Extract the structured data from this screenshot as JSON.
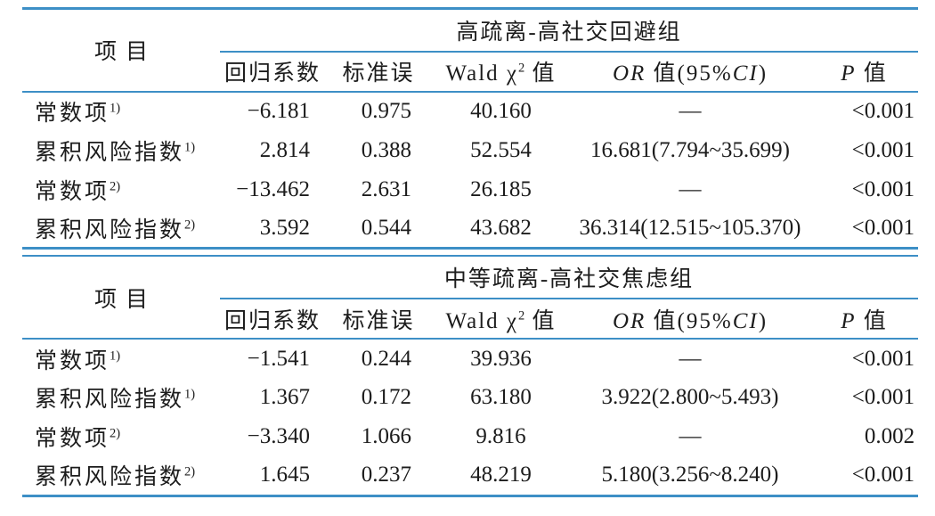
{
  "accent_color": "#3d8fc6",
  "headers": {
    "item": "项目",
    "coef": "回归系数",
    "se": "标准误",
    "wald_prefix": "Wald χ",
    "wald_sup": "2",
    "wald_suffix": " 值",
    "or_italic1": "OR",
    "or_mid": " 值(95%",
    "or_italic2": "CI",
    "or_close": ")",
    "p_italic": "P",
    "p_suffix": " 值"
  },
  "tables": [
    {
      "group_title": "高疏离-高社交回避组",
      "rows": [
        {
          "label": "常数项",
          "sup": "1)",
          "coef": "−6.181",
          "se": "0.975",
          "wald": "40.160",
          "or": "—",
          "p": "<0.001"
        },
        {
          "label": "累积风险指数",
          "sup": "1)",
          "coef": "2.814",
          "se": "0.388",
          "wald": "52.554",
          "or": "16.681(7.794~35.699)",
          "p": "<0.001"
        },
        {
          "label": "常数项",
          "sup": "2)",
          "coef": "−13.462",
          "se": "2.631",
          "wald": "26.185",
          "or": "—",
          "p": "<0.001"
        },
        {
          "label": "累积风险指数",
          "sup": "2)",
          "coef": "3.592",
          "se": "0.544",
          "wald": "43.682",
          "or": "36.314(12.515~105.370)",
          "p": "<0.001"
        }
      ]
    },
    {
      "group_title": "中等疏离-高社交焦虑组",
      "rows": [
        {
          "label": "常数项",
          "sup": "1)",
          "coef": "−1.541",
          "se": "0.244",
          "wald": "39.936",
          "or": "—",
          "p": "<0.001"
        },
        {
          "label": "累积风险指数",
          "sup": "1)",
          "coef": "1.367",
          "se": "0.172",
          "wald": "63.180",
          "or": "3.922(2.800~5.493)",
          "p": "<0.001"
        },
        {
          "label": "常数项",
          "sup": "2)",
          "coef": "−3.340",
          "se": "1.066",
          "wald": "9.816",
          "or": "—",
          "p": "0.002"
        },
        {
          "label": "累积风险指数",
          "sup": "2)",
          "coef": "1.645",
          "se": "0.237",
          "wald": "48.219",
          "or": "5.180(3.256~8.240)",
          "p": "<0.001"
        }
      ]
    }
  ],
  "chart_data": {
    "type": "table",
    "column_headers": [
      "项目",
      "回归系数",
      "标准误",
      "Wald χ2 值",
      "OR 值(95%CI)",
      "P 值"
    ],
    "groups": [
      {
        "title": "高疏离-高社交回避组",
        "rows": [
          [
            "常数项1)",
            "−6.181",
            "0.975",
            "40.160",
            "—",
            "<0.001"
          ],
          [
            "累积风险指数1)",
            "2.814",
            "0.388",
            "52.554",
            "16.681(7.794~35.699)",
            "<0.001"
          ],
          [
            "常数项2)",
            "−13.462",
            "2.631",
            "26.185",
            "—",
            "<0.001"
          ],
          [
            "累积风险指数2)",
            "3.592",
            "0.544",
            "43.682",
            "36.314(12.515~105.370)",
            "<0.001"
          ]
        ]
      },
      {
        "title": "中等疏离-高社交焦虑组",
        "rows": [
          [
            "常数项1)",
            "−1.541",
            "0.244",
            "39.936",
            "—",
            "<0.001"
          ],
          [
            "累积风险指数1)",
            "1.367",
            "0.172",
            "63.180",
            "3.922(2.800~5.493)",
            "<0.001"
          ],
          [
            "常数项2)",
            "−3.340",
            "1.066",
            "9.816",
            "—",
            "0.002"
          ],
          [
            "累积风险指数2)",
            "1.645",
            "0.237",
            "48.219",
            "5.180(3.256~8.240)",
            "<0.001"
          ]
        ]
      }
    ]
  }
}
